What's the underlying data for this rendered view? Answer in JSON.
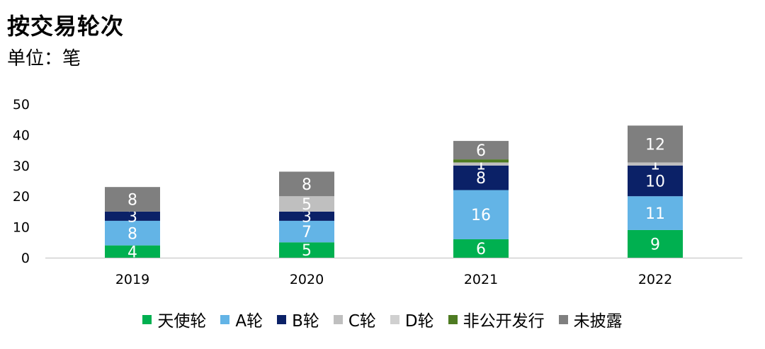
{
  "title": "按交易轮次",
  "subtitle": "单位：笔",
  "chart_data": {
    "type": "bar",
    "stacked": true,
    "categories": [
      "2019",
      "2020",
      "2021",
      "2022"
    ],
    "ylim": [
      0,
      50
    ],
    "yticks": [
      0,
      10,
      20,
      30,
      40,
      50
    ],
    "series": [
      {
        "name": "天使轮",
        "color": "#00B050",
        "values": [
          4,
          5,
          6,
          9
        ],
        "labels": [
          "4",
          "5",
          "6",
          "9"
        ]
      },
      {
        "name": "A轮",
        "color": "#63B4E6",
        "values": [
          8,
          7,
          16,
          11
        ],
        "labels": [
          "8",
          "7",
          "16",
          "11"
        ]
      },
      {
        "name": "B轮",
        "color": "#0B2167",
        "values": [
          3,
          3,
          8,
          10
        ],
        "labels": [
          "3",
          "3",
          "8",
          "10"
        ]
      },
      {
        "name": "C轮",
        "color": "#BFBFBF",
        "values": [
          0,
          5,
          1,
          1
        ],
        "labels": [
          "",
          "5",
          "1",
          "1"
        ]
      },
      {
        "name": "D轮",
        "color": "#D0D0D0",
        "values": [
          0,
          0,
          0,
          0
        ],
        "labels": [
          "",
          "",
          "",
          ""
        ]
      },
      {
        "name": "非公开发行",
        "color": "#4E7B22",
        "values": [
          0,
          0,
          1,
          0
        ],
        "labels": [
          "",
          "",
          "",
          ""
        ]
      },
      {
        "name": "未披露",
        "color": "#7F7F7F",
        "values": [
          8,
          8,
          6,
          12
        ],
        "labels": [
          "8",
          "8",
          "6",
          "12"
        ]
      }
    ]
  }
}
